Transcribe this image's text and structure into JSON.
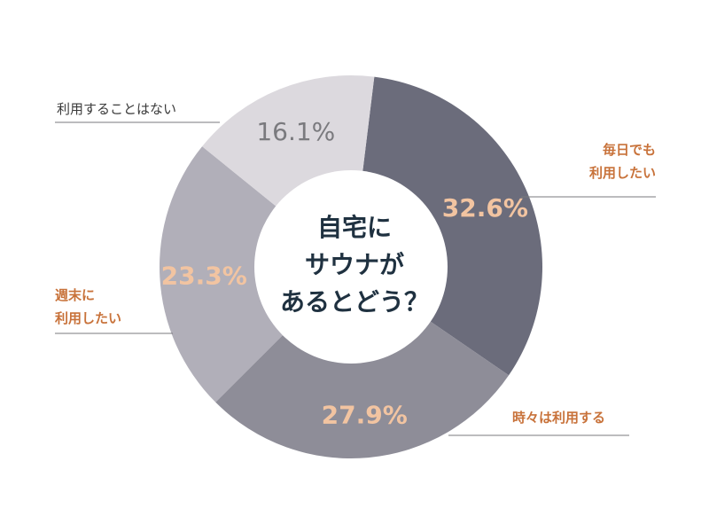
{
  "chart_data": {
    "type": "pie",
    "title": "自宅にサウナがあるとどう？",
    "title_lines": [
      "自宅に",
      "サウナが",
      "あるとどう？"
    ],
    "unit": "%",
    "slices": [
      {
        "label": "毎日でも利用したい",
        "label_lines": [
          "毎日でも",
          "利用したい"
        ],
        "value": 32.6,
        "value_label": "32.6%",
        "color": "#6b6c7b"
      },
      {
        "label": "時々は利用する",
        "label_lines": [
          "時々は利用する"
        ],
        "value": 27.9,
        "value_label": "27.9%",
        "color": "#8e8d98"
      },
      {
        "label": "週末に利用したい",
        "label_lines": [
          "週末に",
          "利用したい"
        ],
        "value": 23.3,
        "value_label": "23.3%",
        "color": "#b1afb9"
      },
      {
        "label": "利用することはない",
        "label_lines": [
          "利用することはない"
        ],
        "value": 16.1,
        "value_label": "16.1%",
        "color": "#dcd9de"
      }
    ],
    "colors": {
      "value_label": "#f2c4a1",
      "value_label_light_slice": "#7a7a7e",
      "category_label": "#c8723a",
      "category_label_muted": "#3a3a3a",
      "leader_line": "#7a7a7e",
      "center_text": "#1f3140",
      "center_disc": "#ffffff"
    }
  }
}
